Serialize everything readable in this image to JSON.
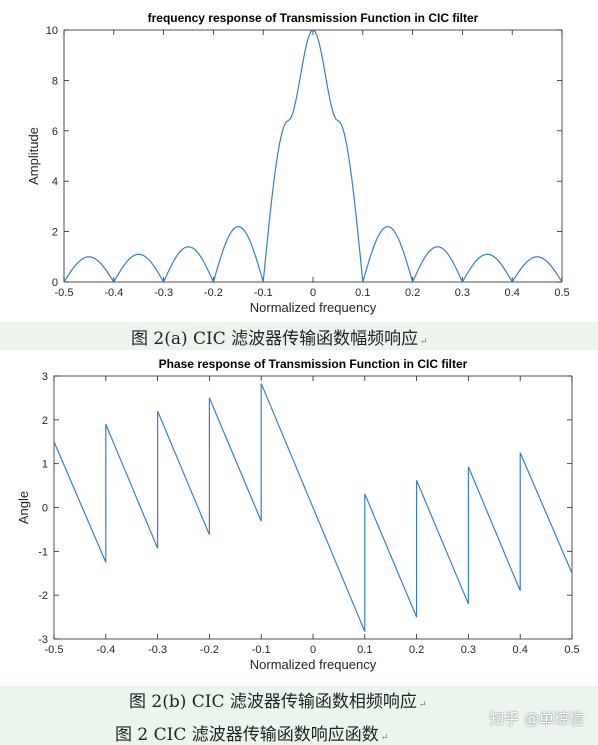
{
  "chart_data": [
    {
      "type": "line",
      "title": "frequency response of Transmission Function in CIC filter",
      "xlabel": "Normalized frequency",
      "ylabel": "Amplitude",
      "xlim": [
        -0.5,
        0.5
      ],
      "ylim": [
        0,
        10
      ],
      "xticks": [
        "-0.5",
        "-0.4",
        "-0.3",
        "-0.2",
        "-0.1",
        "0",
        "0.1",
        "0.2",
        "0.3",
        "0.4",
        "0.5"
      ],
      "yticks": [
        "0",
        "2",
        "4",
        "6",
        "8",
        "10"
      ],
      "grid": false,
      "color": "#3a7ec4",
      "series": [
        {
          "x": [
            -0.5,
            -0.45,
            -0.4,
            -0.35,
            -0.3,
            -0.25,
            -0.2,
            -0.15,
            -0.1,
            -0.05,
            0,
            0.05,
            0.1,
            0.15,
            0.2,
            0.25,
            0.3,
            0.35,
            0.4,
            0.45,
            0.5
          ],
          "y": [
            0,
            1.0,
            0,
            1.1,
            0,
            1.4,
            0,
            2.2,
            0,
            6.4,
            10,
            6.4,
            0,
            2.2,
            0,
            1.4,
            0,
            1.1,
            0,
            1.0,
            0
          ]
        }
      ]
    },
    {
      "type": "line",
      "title": "Phase response of Transmission Function in CIC filter",
      "xlabel": "Normalized frequency",
      "ylabel": "Angle",
      "xlim": [
        -0.5,
        0.5
      ],
      "ylim": [
        -3,
        3
      ],
      "xticks": [
        "-0.5",
        "-0.4",
        "-0.3",
        "-0.2",
        "-0.1",
        "0",
        "0.1",
        "0.2",
        "0.3",
        "0.4",
        "0.5"
      ],
      "yticks": [
        "-3",
        "-2",
        "-1",
        "0",
        "1",
        "2",
        "3"
      ],
      "grid": false,
      "color": "#3a7ec4",
      "series": [
        {
          "x": [
            -0.5,
            -0.4,
            -0.4,
            -0.3,
            -0.3,
            -0.2,
            -0.2,
            -0.1,
            -0.1,
            0.1,
            0.1,
            0.2,
            0.2,
            0.3,
            0.3,
            0.4,
            0.4,
            0.5
          ],
          "y": [
            1.5,
            -1.25,
            1.9,
            -0.93,
            2.2,
            -0.62,
            2.5,
            -0.31,
            2.83,
            -2.83,
            0.31,
            -2.5,
            0.62,
            -2.2,
            0.93,
            -1.9,
            1.25,
            -1.5
          ]
        }
      ]
    }
  ],
  "captions": {
    "fig_a": "图 2(a) CIC 滤波器传输函数幅频响应",
    "fig_b": "图 2(b) CIC 滤波器传输函数相频响应",
    "fig_main": "图 2 CIC 滤波器传输函数响应函数"
  },
  "return_mark": "↵",
  "watermark": "知乎 @单琼信"
}
